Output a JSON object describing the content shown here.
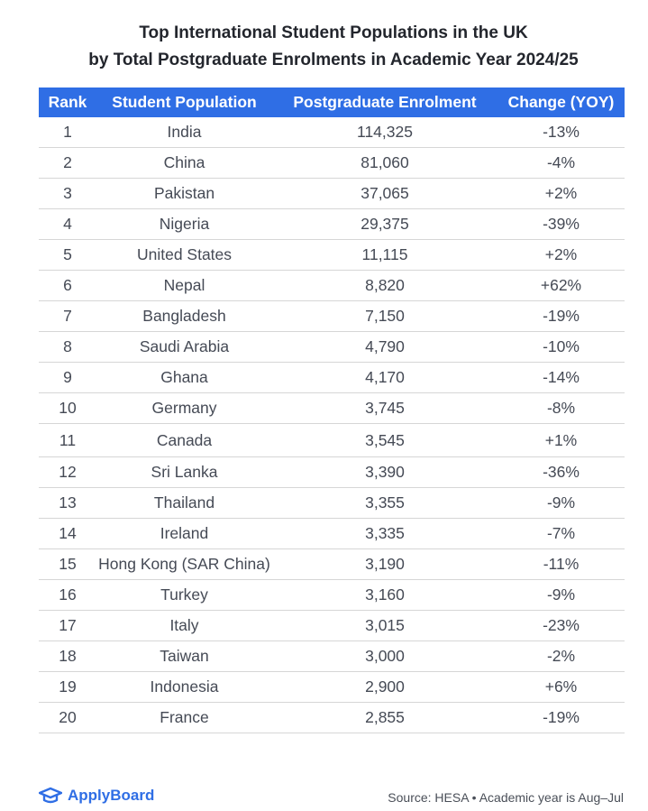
{
  "title": {
    "line1": "Top International Student Populations in the UK",
    "line2": "by Total Postgraduate Enrolments in Academic Year 2024/25"
  },
  "table": {
    "headers": [
      "Rank",
      "Student Population",
      "Postgraduate Enrolment",
      "Change (YOY)"
    ],
    "rows": [
      {
        "rank": "1",
        "country": "India",
        "enrolment": "114,325",
        "change": "-13%"
      },
      {
        "rank": "2",
        "country": "China",
        "enrolment": "81,060",
        "change": "-4%"
      },
      {
        "rank": "3",
        "country": "Pakistan",
        "enrolment": "37,065",
        "change": "+2%"
      },
      {
        "rank": "4",
        "country": "Nigeria",
        "enrolment": "29,375",
        "change": "-39%"
      },
      {
        "rank": "5",
        "country": "United States",
        "enrolment": "11,115",
        "change": "+2%"
      },
      {
        "rank": "6",
        "country": "Nepal",
        "enrolment": "8,820",
        "change": "+62%"
      },
      {
        "rank": "7",
        "country": "Bangladesh",
        "enrolment": "7,150",
        "change": "-19%"
      },
      {
        "rank": "8",
        "country": "Saudi Arabia",
        "enrolment": "4,790",
        "change": "-10%"
      },
      {
        "rank": "9",
        "country": "Ghana",
        "enrolment": "4,170",
        "change": "-14%"
      },
      {
        "rank": "10",
        "country": "Germany",
        "enrolment": "3,745",
        "change": "-8%"
      },
      {
        "rank": "11",
        "country": "Canada",
        "enrolment": "3,545",
        "change": "+1%"
      },
      {
        "rank": "12",
        "country": "Sri Lanka",
        "enrolment": "3,390",
        "change": "-36%"
      },
      {
        "rank": "13",
        "country": "Thailand",
        "enrolment": "3,355",
        "change": "-9%"
      },
      {
        "rank": "14",
        "country": "Ireland",
        "enrolment": "3,335",
        "change": "-7%"
      },
      {
        "rank": "15",
        "country": "Hong Kong (SAR China)",
        "enrolment": "3,190",
        "change": "-11%"
      },
      {
        "rank": "16",
        "country": "Turkey",
        "enrolment": "3,160",
        "change": "-9%"
      },
      {
        "rank": "17",
        "country": "Italy",
        "enrolment": "3,015",
        "change": "-23%"
      },
      {
        "rank": "18",
        "country": "Taiwan",
        "enrolment": "3,000",
        "change": "-2%"
      },
      {
        "rank": "19",
        "country": "Indonesia",
        "enrolment": "2,900",
        "change": "+6%"
      },
      {
        "rank": "20",
        "country": "France",
        "enrolment": "2,855",
        "change": "-19%"
      }
    ]
  },
  "footer": {
    "logo_text": "ApplyBoard",
    "logo_icon": "graduation-cap-icon",
    "source": "Source: HESA • Academic year is Aug–Jul"
  },
  "colors": {
    "header_bg": "#2f6ee5",
    "negative": "#e4385a",
    "positive": "#2f9f5c",
    "brand": "#2f6ee5"
  }
}
